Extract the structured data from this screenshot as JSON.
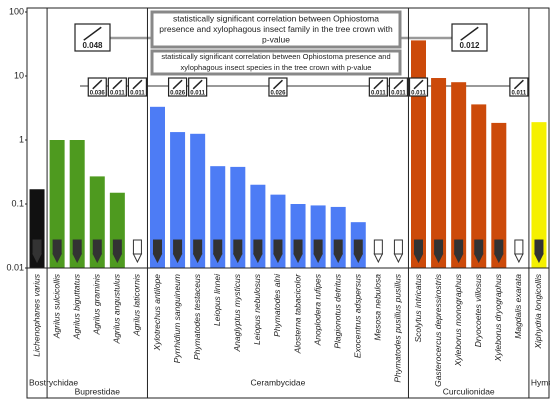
{
  "chart_data": {
    "type": "bar",
    "log_scale": true,
    "ylim": [
      0.01,
      100
    ],
    "yticks": [
      0.01,
      0.1,
      1,
      10,
      100
    ],
    "series": [
      {
        "name": "Bostrychidae",
        "color": "#111111",
        "categories": [
          "Lichenophanes varius"
        ],
        "values": [
          0.17
        ],
        "p_values": [
          null
        ]
      },
      {
        "name": "Buprestidae",
        "color": "#4e9a1f",
        "categories": [
          "Agrilus sulcicollis",
          "Agrilus biguttatus",
          "Agrilus graminis",
          "Agrilus angustulus",
          "Agrilus laticornis"
        ],
        "values": [
          1.0,
          1.0,
          0.27,
          0.15,
          null
        ],
        "p_values": [
          null,
          null,
          0.036,
          0.011,
          0.011
        ]
      },
      {
        "name": "Cerambycidae",
        "color": "#4d7cf5",
        "categories": [
          "Xylotrechus antilope",
          "Pyrrhidium sanguineum",
          "Phymatodes testaceus",
          "Leiopus linnei",
          "Anaglyptus mysticus",
          "Leiopus nebulosus",
          "Phymatodes alni",
          "Alosterna tabacicolor",
          "Anoplodera rufipes",
          "Plagionotus detritus",
          "Exocentrus adspersus",
          "Mesosa nebulosa",
          "Phymatodes pusillus pusillus"
        ],
        "values": [
          3.3,
          1.33,
          1.25,
          0.39,
          0.38,
          0.2,
          0.14,
          0.1,
          0.095,
          0.09,
          0.052,
          null,
          null
        ],
        "p_values": [
          null,
          0.026,
          0.011,
          null,
          null,
          null,
          0.026,
          null,
          null,
          null,
          null,
          0.011,
          0.011
        ]
      },
      {
        "name": "Curculionidae",
        "color": "#cc4a0a",
        "categories": [
          "Scolytus intricatus",
          "Gasterocercus depressirostris",
          "Xyleborus monographus",
          "Dryocoetes villosus",
          "Xyleborus dryographus",
          "Magdalis exarata"
        ],
        "values": [
          36,
          9.3,
          8,
          3.6,
          1.85,
          null
        ],
        "p_values": [
          0.011,
          null,
          null,
          null,
          null,
          0.011
        ]
      },
      {
        "name": "Hymenoptera",
        "color": "#f5f000",
        "categories": [
          "Xiphydria longicollis"
        ],
        "values": [
          1.9
        ],
        "p_values": [
          null
        ]
      }
    ],
    "callouts": [
      {
        "p_value": 0.048,
        "lines": [
          "statistically significant correlation between Ophiostoma",
          "presence and xylophagous insect family in the tree crown with",
          "p-value"
        ]
      },
      {
        "p_value": 0.012,
        "lines": [
          "statistically significant correlation between Ophiostoma presence and",
          "xylophagous insect species in the tree crown with p-value"
        ]
      }
    ]
  }
}
